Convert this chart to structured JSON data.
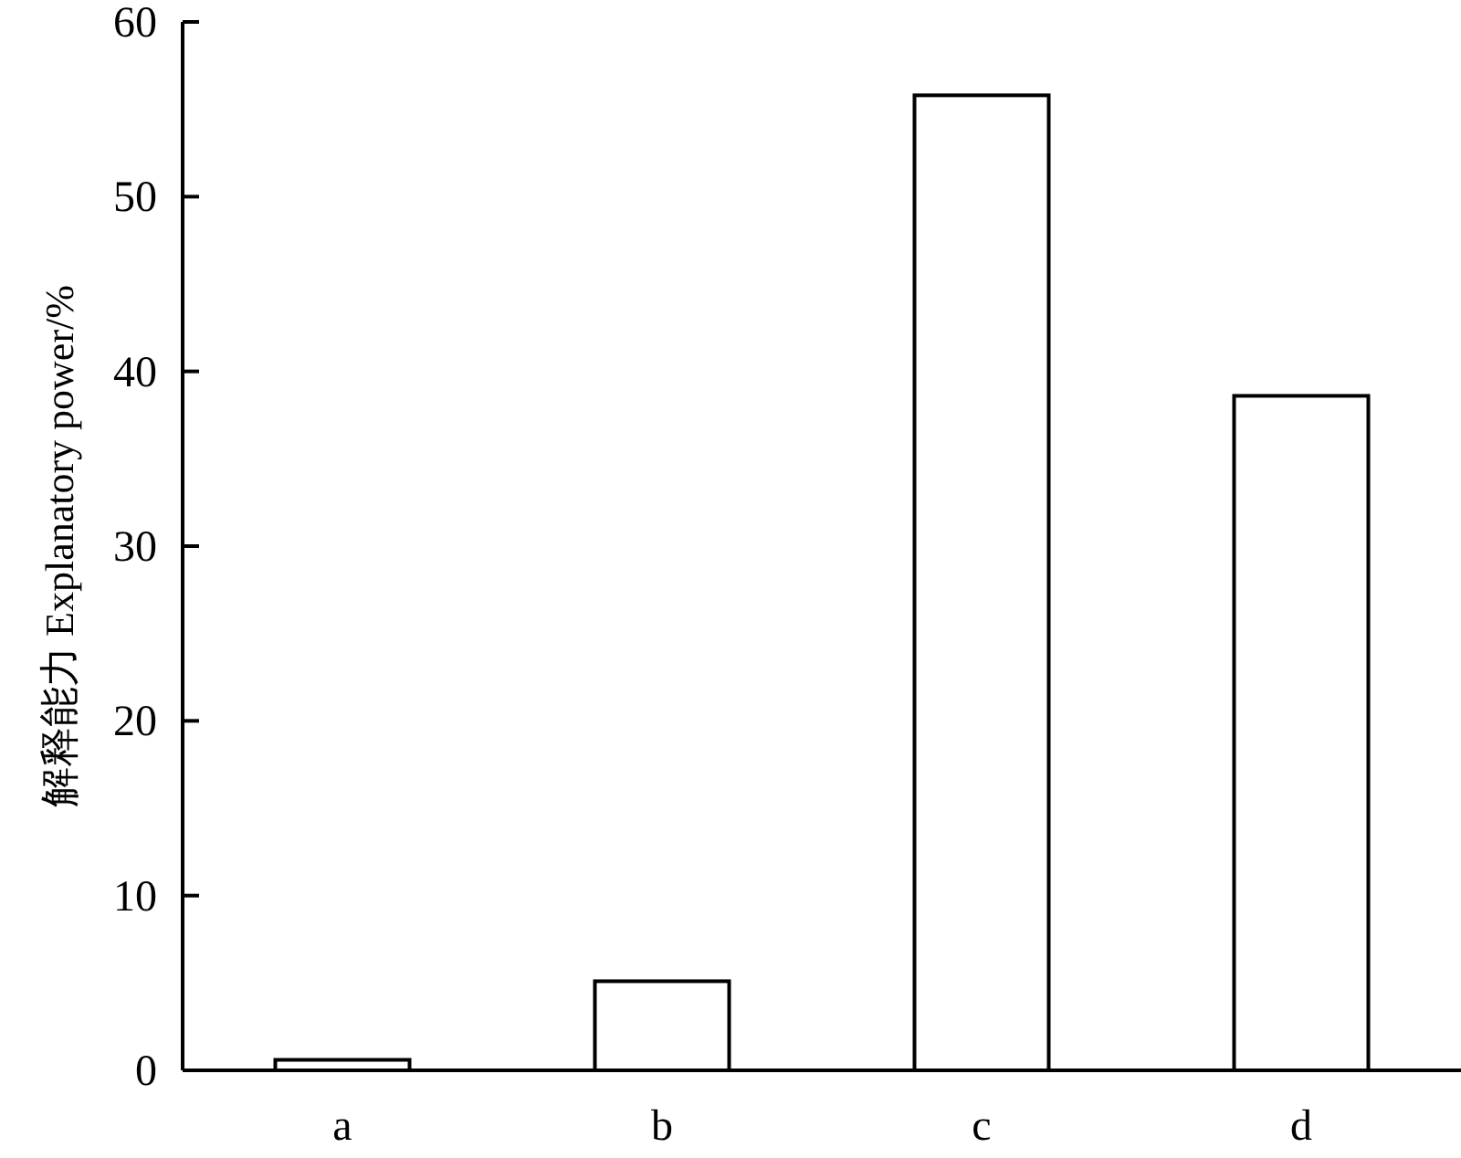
{
  "chart_data": {
    "type": "bar",
    "ylabel": "解释能力 Explanatory power/%",
    "categories": [
      "a",
      "b",
      "c",
      "d"
    ],
    "values": [
      0.6,
      5.1,
      55.8,
      38.6
    ],
    "color": "#ffffff",
    "ylim": [
      0,
      60
    ],
    "yticks": [
      0,
      10,
      20,
      30,
      40,
      50,
      60
    ]
  }
}
